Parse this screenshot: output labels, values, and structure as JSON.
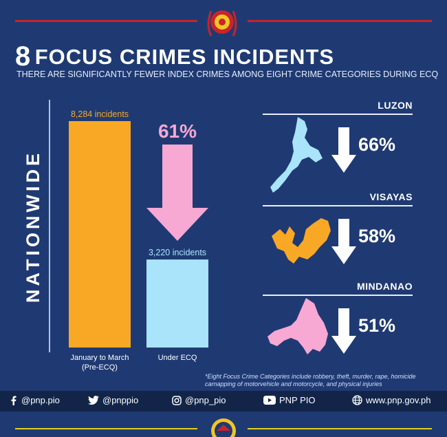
{
  "title": {
    "number": "8",
    "text": "FOCUS CRIMES INCIDENTS"
  },
  "subtitle": "THERE ARE SIGNIFICANTLY FEWER INDEX CRIMES AMONG EIGHT CRIME CATEGORIES DURING ECQ",
  "side_label": "NATIONWIDE",
  "chart_data": {
    "type": "bar",
    "categories": [
      "January to March (Pre-ECQ)",
      "Under ECQ"
    ],
    "category_lines": [
      [
        "January to March",
        "(Pre-ECQ)"
      ],
      [
        "Under ECQ"
      ]
    ],
    "values": [
      8284,
      3220
    ],
    "value_labels": [
      "8,284 incidents",
      "3,220 incidents"
    ],
    "ylim": [
      0,
      8284
    ],
    "change_label": "61%",
    "colors": [
      "#f9a825",
      "#a9e4fb"
    ],
    "change_color": "#f7a8d3"
  },
  "regions": [
    {
      "name": "LUZON",
      "decrease": "66%",
      "color": "#a9e4fb"
    },
    {
      "name": "VISAYAS",
      "decrease": "58%",
      "color": "#f9a825"
    },
    {
      "name": "MINDANAO",
      "decrease": "51%",
      "color": "#f7a8d3"
    }
  ],
  "footnote": "*Eight Focus Crime Categories include robbery, theft, murder, rape, homicide carnapping of motorvehicle and motorcycle, and physical injuries",
  "footer": [
    {
      "icon": "facebook-icon",
      "label": "@pnp.pio"
    },
    {
      "icon": "twitter-icon",
      "label": "@pnppio"
    },
    {
      "icon": "instagram-icon",
      "label": "@pnp_pio"
    },
    {
      "icon": "youtube-icon",
      "label": "PNP PIO"
    },
    {
      "icon": "globe-icon",
      "label": "www.pnp.gov.ph"
    }
  ],
  "accent_red": "#c8242b",
  "accent_yellow": "#e5d11c",
  "background": "#1f3a73"
}
